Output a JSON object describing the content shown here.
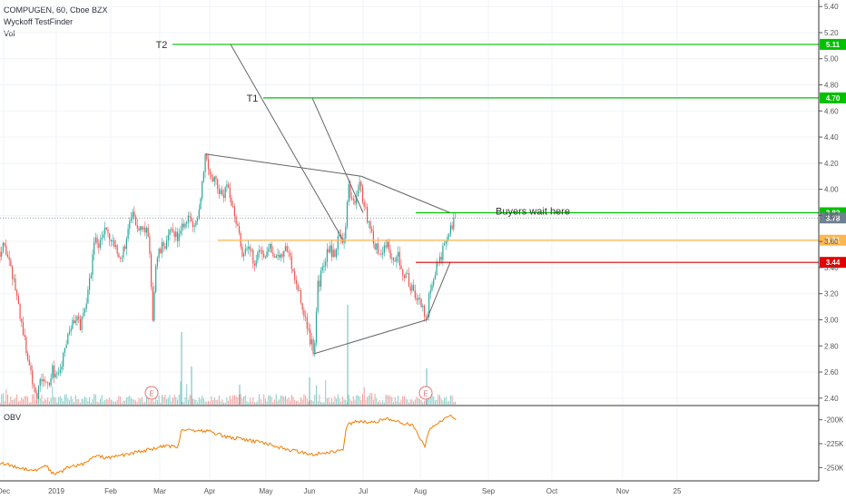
{
  "header": {
    "symbol_line": "COMPUGEN, 60, Cboe BZX",
    "indicator_line": "Wyckoff TestFinder",
    "volume_line": "Vol"
  },
  "obv_label": "OBV",
  "colors": {
    "bull": "#26a69a",
    "bear": "#ef5350",
    "target_line": "#00c000",
    "support_line": "#e00000",
    "orange_line": "#ffb74d",
    "obv_line": "#f57c00",
    "trend_line": "#666666",
    "current_tag": "#708090"
  },
  "chart_data": [
    {
      "type": "candlestick",
      "title": "COMPUGEN, 60, Cboe BZX",
      "ylim": [
        2.35,
        5.45
      ],
      "y_ticks": [
        2.4,
        2.6,
        2.8,
        3.0,
        3.2,
        3.4,
        3.6,
        3.8,
        4.0,
        4.2,
        4.4,
        4.6,
        4.8,
        5.0,
        5.2,
        5.4
      ],
      "y_tick_labels": [
        "2.40",
        "2.60",
        "2.80",
        "3.00",
        "3.20",
        "3.40",
        "3.60",
        "3.80",
        "4.00",
        "4.20",
        "4.40",
        "4.60",
        "4.80",
        "5.00",
        "5.20",
        "5.40"
      ],
      "x_ticks": [
        "Dec",
        "2019",
        "Feb",
        "Mar",
        "Apr",
        "May",
        "Jun",
        "Jul",
        "Aug",
        "Sep",
        "Oct",
        "Nov",
        "25"
      ],
      "price_path": [
        [
          0,
          3.52
        ],
        [
          4,
          3.62
        ],
        [
          10,
          3.42
        ],
        [
          16,
          3.28
        ],
        [
          22,
          3.05
        ],
        [
          28,
          2.8
        ],
        [
          34,
          2.6
        ],
        [
          40,
          2.42
        ],
        [
          46,
          2.55
        ],
        [
          52,
          2.48
        ],
        [
          58,
          2.62
        ],
        [
          64,
          2.55
        ],
        [
          70,
          2.72
        ],
        [
          76,
          2.9
        ],
        [
          82,
          3.02
        ],
        [
          88,
          2.95
        ],
        [
          94,
          3.12
        ],
        [
          100,
          3.35
        ],
        [
          104,
          3.62
        ],
        [
          110,
          3.58
        ],
        [
          116,
          3.7
        ],
        [
          122,
          3.6
        ],
        [
          128,
          3.52
        ],
        [
          134,
          3.48
        ],
        [
          140,
          3.65
        ],
        [
          146,
          3.8
        ],
        [
          152,
          3.7
        ],
        [
          158,
          3.75
        ],
        [
          164,
          3.6
        ],
        [
          168,
          3.0
        ],
        [
          172,
          3.45
        ],
        [
          178,
          3.55
        ],
        [
          184,
          3.6
        ],
        [
          190,
          3.7
        ],
        [
          196,
          3.62
        ],
        [
          202,
          3.72
        ],
        [
          208,
          3.8
        ],
        [
          214,
          3.68
        ],
        [
          220,
          3.9
        ],
        [
          226,
          4.27
        ],
        [
          232,
          4.12
        ],
        [
          238,
          4.05
        ],
        [
          244,
          3.95
        ],
        [
          250,
          4.0
        ],
        [
          256,
          3.9
        ],
        [
          262,
          3.7
        ],
        [
          268,
          3.48
        ],
        [
          274,
          3.55
        ],
        [
          280,
          3.45
        ],
        [
          286,
          3.55
        ],
        [
          292,
          3.5
        ],
        [
          298,
          3.58
        ],
        [
          304,
          3.45
        ],
        [
          310,
          3.52
        ],
        [
          316,
          3.55
        ],
        [
          322,
          3.4
        ],
        [
          328,
          3.25
        ],
        [
          334,
          3.05
        ],
        [
          340,
          2.9
        ],
        [
          346,
          2.74
        ],
        [
          350,
          3.25
        ],
        [
          356,
          3.4
        ],
        [
          362,
          3.55
        ],
        [
          368,
          3.5
        ],
        [
          374,
          3.65
        ],
        [
          380,
          3.62
        ],
        [
          384,
          4.02
        ],
        [
          390,
          3.85
        ],
        [
          396,
          4.06
        ],
        [
          402,
          3.85
        ],
        [
          408,
          3.7
        ],
        [
          414,
          3.55
        ],
        [
          420,
          3.5
        ],
        [
          426,
          3.6
        ],
        [
          432,
          3.45
        ],
        [
          438,
          3.5
        ],
        [
          444,
          3.38
        ],
        [
          450,
          3.3
        ],
        [
          456,
          3.2
        ],
        [
          462,
          3.15
        ],
        [
          468,
          3.05
        ],
        [
          470,
          3.0
        ],
        [
          474,
          3.25
        ],
        [
          480,
          3.4
        ],
        [
          486,
          3.5
        ],
        [
          490,
          3.55
        ],
        [
          494,
          3.65
        ],
        [
          498,
          3.7
        ],
        [
          502,
          3.78
        ]
      ],
      "horizontal_levels": [
        {
          "label": "T2",
          "value": 5.11,
          "tag": "5.11",
          "color": "#00c000"
        },
        {
          "label": "T1",
          "value": 4.7,
          "tag": "4.70",
          "color": "#00c000"
        },
        {
          "label": "Buyers wait here",
          "value": 3.82,
          "tag": "3.82",
          "color": "#00c000"
        },
        {
          "label": "",
          "value": 3.61,
          "tag": "3.61",
          "color": "#ffb74d"
        },
        {
          "label": "",
          "value": 3.44,
          "tag": "3.44",
          "color": "#e00000"
        }
      ],
      "current_price": {
        "value": 3.78,
        "tag": "3.78"
      },
      "earnings_markers": [
        "E",
        "E"
      ]
    },
    {
      "type": "line",
      "title": "OBV",
      "ylim": [
        -262000,
        -188000
      ],
      "y_ticks": [
        -200000,
        -225000,
        -250000
      ],
      "y_tick_labels": [
        "-200K",
        "-225K",
        "-250K"
      ]
    }
  ]
}
